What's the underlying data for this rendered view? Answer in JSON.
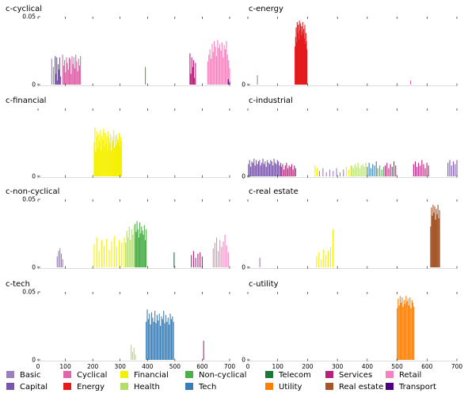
{
  "chart_data": {
    "type": "bar",
    "x_ticks": [
      0,
      100,
      200,
      300,
      400,
      500,
      600,
      700
    ],
    "xlim": [
      0,
      700
    ],
    "ylim": [
      0,
      0.05
    ],
    "y_tick_labels_all": [
      "0",
      "0.05"
    ],
    "y_tick_labels_zero_only": [
      "0"
    ],
    "x_tick_labels": [
      "0",
      "100",
      "200",
      "300",
      "400",
      "500",
      "600",
      "700"
    ],
    "categories": [
      {
        "key": "basic",
        "name": "Basic",
        "color": "#9b7fbf"
      },
      {
        "key": "capital",
        "name": "Capital",
        "color": "#7a55b0"
      },
      {
        "key": "cyclical",
        "name": "Cyclical",
        "color": "#e065ab"
      },
      {
        "key": "energy",
        "name": "Energy",
        "color": "#e41a1c"
      },
      {
        "key": "financial",
        "name": "Financial",
        "color": "#f5f000"
      },
      {
        "key": "health",
        "name": "Health",
        "color": "#b3de69"
      },
      {
        "key": "noncyclical",
        "name": "Non-cyclical",
        "color": "#4daf4a"
      },
      {
        "key": "tech",
        "name": "Tech",
        "color": "#377eb8"
      },
      {
        "key": "telecom",
        "name": "Telecom",
        "color": "#1b7837"
      },
      {
        "key": "utility",
        "name": "Utility",
        "color": "#ff7f00"
      },
      {
        "key": "services",
        "name": "Services",
        "color": "#b8207b"
      },
      {
        "key": "realestate",
        "name": "Real estate",
        "color": "#a65628"
      },
      {
        "key": "retail",
        "name": "Retail",
        "color": "#f781bf"
      },
      {
        "key": "transport",
        "name": "Transport",
        "color": "#4b0082"
      }
    ],
    "panels": [
      {
        "title": "c-cyclical",
        "y_ticks_full": true,
        "bar_groups": [
          {
            "category": "basic",
            "x_start": 50,
            "x_end": 62,
            "values": [
              0.019,
              0.0,
              0.013,
              0.0,
              0.02
            ]
          },
          {
            "category": "capital",
            "x_start": 63,
            "x_end": 82,
            "values": [
              0.021,
              0.008,
              0.02,
              0.003,
              0.015,
              0.011,
              0.02,
              0.006
            ]
          },
          {
            "category": "cyclical",
            "x_start": 90,
            "x_end": 155,
            "values": [
              0.022,
              0.014,
              0.018,
              0.009,
              0.02,
              0.016,
              0.011,
              0.02,
              0.019,
              0.008,
              0.021,
              0.015,
              0.02,
              0.012,
              0.022,
              0.017,
              0.01,
              0.019,
              0.014,
              0.021
            ]
          },
          {
            "category": "noncyclical",
            "x_start": 392,
            "x_end": 394,
            "values": [
              0.013
            ]
          },
          {
            "category": "services",
            "x_start": 555,
            "x_end": 575,
            "values": [
              0.023,
              0.008,
              0.02,
              0.013,
              0.018,
              0.005,
              0.016
            ]
          },
          {
            "category": "retail",
            "x_start": 620,
            "x_end": 700,
            "values": [
              0.017,
              0.022,
              0.026,
              0.019,
              0.03,
              0.024,
              0.032,
              0.028,
              0.021,
              0.033,
              0.027,
              0.03,
              0.025,
              0.031,
              0.02,
              0.029,
              0.026,
              0.032,
              0.022,
              0.018,
              0.012
            ]
          },
          {
            "category": "transport",
            "x_start": 695,
            "x_end": 700,
            "values": [
              0.004,
              0.002
            ]
          }
        ]
      },
      {
        "title": "c-energy",
        "y_ticks_full": false,
        "bar_groups": [
          {
            "category": "basic",
            "x_start": 32,
            "x_end": 36,
            "values": [
              0.007
            ]
          },
          {
            "category": "energy",
            "x_start": 158,
            "x_end": 198,
            "values": [
              0.028,
              0.035,
              0.042,
              0.031,
              0.046,
              0.038,
              0.044,
              0.033,
              0.047,
              0.04,
              0.045,
              0.036,
              0.043,
              0.039,
              0.046,
              0.037,
              0.041,
              0.034,
              0.044,
              0.03,
              0.038,
              0.032,
              0.026
            ]
          },
          {
            "category": "cyclical",
            "x_start": 545,
            "x_end": 548,
            "values": [
              0.003
            ]
          }
        ]
      },
      {
        "title": "c-financial",
        "y_ticks_full": false,
        "bar_groups": [
          {
            "category": "financial",
            "x_start": 205,
            "x_end": 305,
            "values": [
              0.025,
              0.036,
              0.018,
              0.029,
              0.033,
              0.021,
              0.031,
              0.026,
              0.034,
              0.019,
              0.03,
              0.027,
              0.035,
              0.022,
              0.032,
              0.024,
              0.03,
              0.02,
              0.033,
              0.028,
              0.025,
              0.031,
              0.019,
              0.029,
              0.026,
              0.034,
              0.021,
              0.03,
              0.023,
              0.031,
              0.027,
              0.025,
              0.032,
              0.022,
              0.029,
              0.026
            ]
          }
        ]
      },
      {
        "title": "c-industrial",
        "y_ticks_full": false,
        "bar_groups": [
          {
            "category": "capital",
            "x_start": 2,
            "x_end": 110,
            "values": [
              0.009,
              0.012,
              0.007,
              0.011,
              0.01,
              0.013,
              0.008,
              0.012,
              0.009,
              0.011,
              0.012,
              0.008,
              0.01,
              0.013,
              0.009,
              0.011,
              0.007,
              0.012,
              0.01,
              0.009,
              0.012,
              0.011,
              0.008,
              0.013,
              0.01,
              0.009,
              0.012,
              0.011,
              0.008,
              0.01
            ]
          },
          {
            "category": "services",
            "x_start": 112,
            "x_end": 160,
            "values": [
              0.007,
              0.009,
              0.005,
              0.008,
              0.01,
              0.006,
              0.008,
              0.007,
              0.009,
              0.005,
              0.008,
              0.006
            ]
          },
          {
            "category": "financial",
            "x_start": 225,
            "x_end": 232,
            "values": [
              0.008,
              0.006
            ]
          },
          {
            "category": "basic",
            "x_start": 240,
            "x_end": 320,
            "values": [
              0.004,
              0.006,
              0.003,
              0.005,
              0.004,
              0.006,
              0.003,
              0.005
            ]
          },
          {
            "category": "financial",
            "x_start": 330,
            "x_end": 345,
            "values": [
              0.007,
              0.005,
              0.008
            ]
          },
          {
            "category": "health",
            "x_start": 348,
            "x_end": 395,
            "values": [
              0.008,
              0.006,
              0.009,
              0.007,
              0.01,
              0.006,
              0.008,
              0.009,
              0.007,
              0.01
            ]
          },
          {
            "category": "tech",
            "x_start": 400,
            "x_end": 430,
            "values": [
              0.007,
              0.01,
              0.006,
              0.009,
              0.008,
              0.011
            ]
          },
          {
            "category": "noncyclical",
            "x_start": 435,
            "x_end": 455,
            "values": [
              0.006,
              0.008,
              0.005,
              0.007
            ]
          },
          {
            "category": "services",
            "x_start": 460,
            "x_end": 495,
            "values": [
              0.008,
              0.01,
              0.006,
              0.009,
              0.007,
              0.011,
              0.008
            ]
          },
          {
            "category": "services",
            "x_start": 555,
            "x_end": 605,
            "values": [
              0.009,
              0.011,
              0.007,
              0.01,
              0.008,
              0.012,
              0.009,
              0.006,
              0.01,
              0.008
            ]
          },
          {
            "category": "capital",
            "x_start": 670,
            "x_end": 700,
            "values": [
              0.01,
              0.012,
              0.008,
              0.011,
              0.009,
              0.012
            ]
          }
        ]
      },
      {
        "title": "c-non-cyclical",
        "y_ticks_full": true,
        "bar_groups": [
          {
            "category": "basic",
            "x_start": 70,
            "x_end": 90,
            "values": [
              0.008,
              0.012,
              0.014,
              0.01,
              0.006
            ]
          },
          {
            "category": "financial",
            "x_start": 205,
            "x_end": 315,
            "values": [
              0.017,
              0.022,
              0.012,
              0.02,
              0.016,
              0.021,
              0.013,
              0.019,
              0.023,
              0.015,
              0.02,
              0.018,
              0.022
            ]
          },
          {
            "category": "health",
            "x_start": 320,
            "x_end": 355,
            "values": [
              0.018,
              0.027,
              0.022,
              0.03,
              0.02,
              0.028,
              0.024,
              0.031,
              0.021
            ]
          },
          {
            "category": "noncyclical",
            "x_start": 355,
            "x_end": 395,
            "values": [
              0.032,
              0.026,
              0.034,
              0.028,
              0.022,
              0.033,
              0.025,
              0.03,
              0.027,
              0.024,
              0.031,
              0.02,
              0.028
            ]
          },
          {
            "category": "telecom",
            "x_start": 497,
            "x_end": 500,
            "values": [
              0.011
            ]
          },
          {
            "category": "services",
            "x_start": 560,
            "x_end": 600,
            "values": [
              0.009,
              0.012,
              0.007,
              0.01,
              0.011,
              0.008
            ]
          },
          {
            "category": "retail",
            "x_start": 640,
            "x_end": 695,
            "values": [
              0.014,
              0.018,
              0.022,
              0.012,
              0.02,
              0.015,
              0.019,
              0.024,
              0.016,
              0.011
            ]
          }
        ]
      },
      {
        "title": "c-real estate",
        "y_ticks_full": false,
        "bar_groups": [
          {
            "category": "basic",
            "x_start": 40,
            "x_end": 43,
            "values": [
              0.007
            ]
          },
          {
            "category": "financial",
            "x_start": 230,
            "x_end": 285,
            "values": [
              0.008,
              0.011,
              0.006,
              0.013,
              0.009,
              0.012,
              0.015,
              0.028
            ]
          },
          {
            "category": "realestate",
            "x_start": 612,
            "x_end": 642,
            "values": [
              0.03,
              0.044,
              0.038,
              0.046,
              0.04,
              0.045,
              0.035,
              0.043,
              0.039,
              0.046,
              0.036,
              0.042
            ]
          }
        ]
      },
      {
        "title": "c-tech",
        "y_ticks_full": true,
        "bar_groups": [
          {
            "category": "health",
            "x_start": 340,
            "x_end": 356,
            "values": [
              0.011,
              0.006,
              0.009,
              0.004
            ]
          },
          {
            "category": "tech",
            "x_start": 395,
            "x_end": 495,
            "values": [
              0.028,
              0.037,
              0.03,
              0.034,
              0.026,
              0.035,
              0.031,
              0.028,
              0.036,
              0.027,
              0.033,
              0.029,
              0.034,
              0.025,
              0.032,
              0.03,
              0.036,
              0.027,
              0.033,
              0.028,
              0.031,
              0.026,
              0.034,
              0.03,
              0.032,
              0.028
            ]
          },
          {
            "category": "services",
            "x_start": 605,
            "x_end": 608,
            "values": [
              0.014
            ]
          }
        ]
      },
      {
        "title": "c-utility",
        "y_ticks_full": false,
        "bar_groups": [
          {
            "category": "utility",
            "x_start": 500,
            "x_end": 556,
            "values": [
              0.038,
              0.045,
              0.04,
              0.047,
              0.042,
              0.046,
              0.039,
              0.044,
              0.041,
              0.047,
              0.043,
              0.045,
              0.04,
              0.046,
              0.038,
              0.044,
              0.042,
              0.039
            ]
          }
        ]
      }
    ]
  }
}
